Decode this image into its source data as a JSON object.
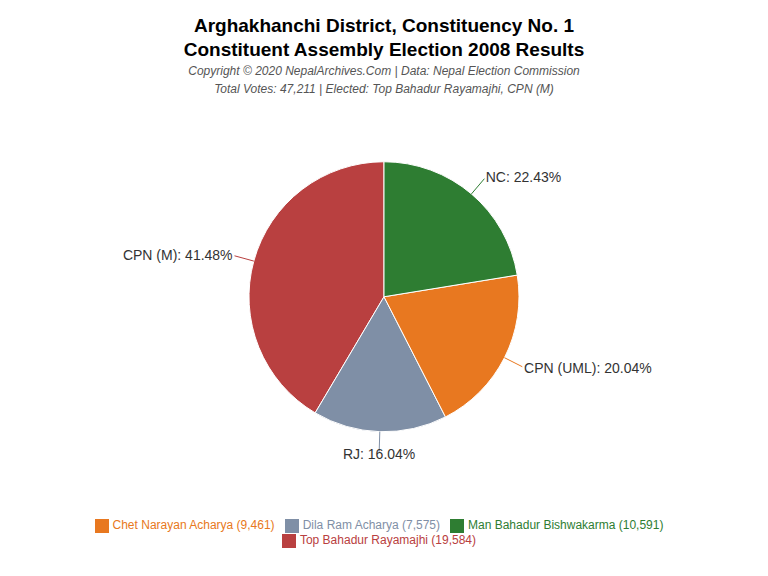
{
  "chart_data": {
    "type": "pie",
    "title": "Arghakhanchi District, Constituency No. 1",
    "subtitle": "Constituent Assembly Election 2008 Results",
    "annotations": [
      "Copyright © 2020 NepalArchives.Com | Data: Nepal Election Commission",
      "Total Votes: 47,211 | Elected: Top Bahadur Rayamajhi, CPN (M)"
    ],
    "categories": [
      "Top Bahadur Rayamajhi (19,584)",
      "Dila Ram Acharya (7,575)",
      "Chet Narayan Acharya (9,461)",
      "Man Bahadur Bishwakarma (10,591)"
    ],
    "values": [
      41.48,
      16.04,
      20.04,
      22.43
    ],
    "value_labels": [
      "CPN (M): 41.48%",
      "RJ: 16.04%",
      "CPN (UML): 20.04%",
      "NC: 22.43%"
    ],
    "data_labels": true,
    "colors": [
      "#b94040",
      "#7f8fa6",
      "#e87820",
      "#2e7d32"
    ],
    "legend": "bottom"
  }
}
